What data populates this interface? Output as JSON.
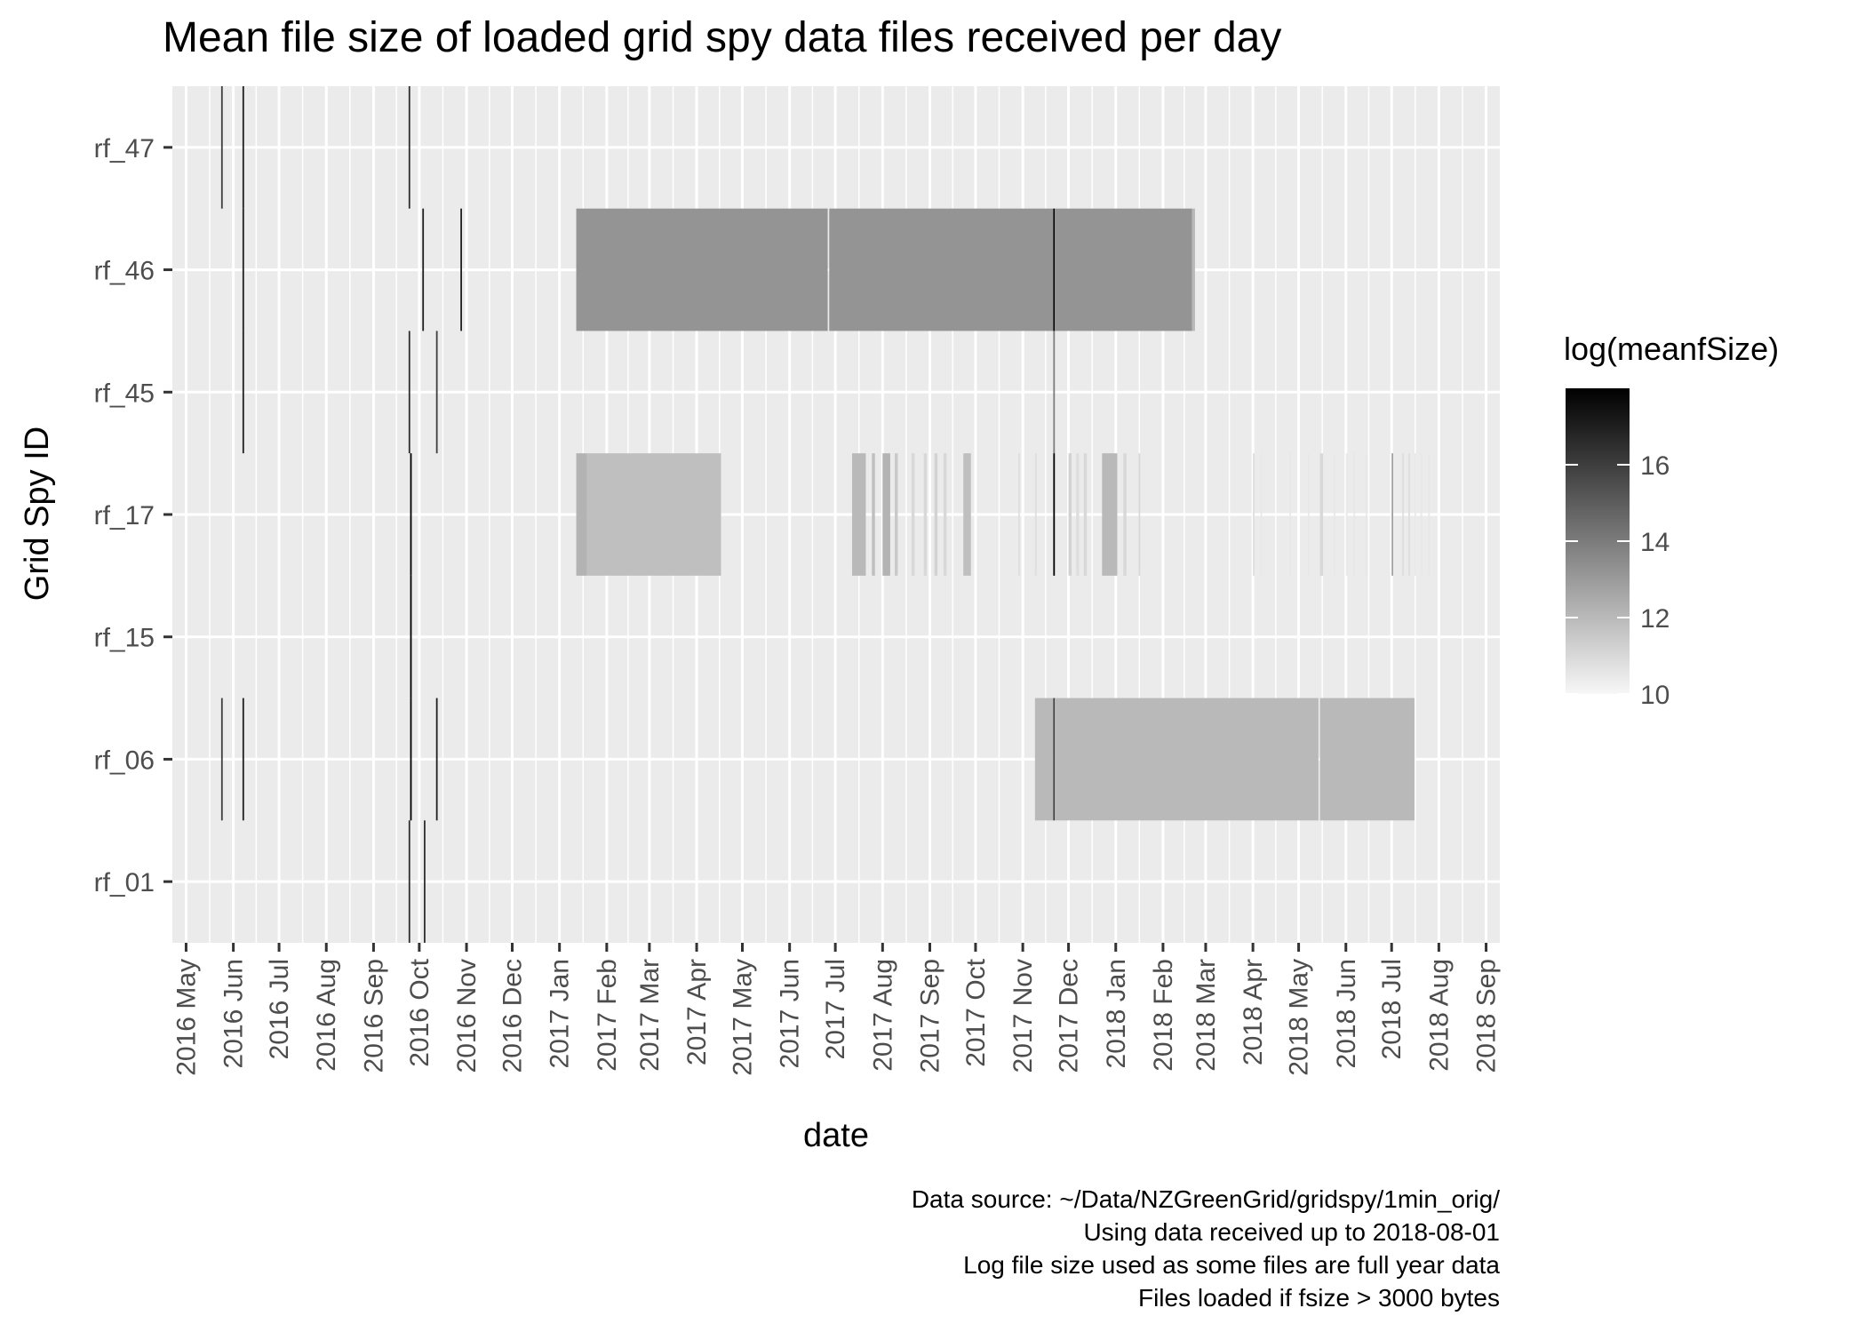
{
  "chart_data": {
    "type": "heatmap",
    "title": "Mean file size of loaded grid spy data files received per day",
    "xlabel": "date",
    "ylabel": "Grid Spy ID",
    "x_ticks": [
      "2016 May",
      "2016 Jun",
      "2016 Jul",
      "2016 Aug",
      "2016 Sep",
      "2016 Oct",
      "2016 Nov",
      "2016 Dec",
      "2017 Jan",
      "2017 Feb",
      "2017 Mar",
      "2017 Apr",
      "2017 May",
      "2017 Jun",
      "2017 Jul",
      "2017 Aug",
      "2017 Sep",
      "2017 Oct",
      "2017 Nov",
      "2017 Dec",
      "2018 Jan",
      "2018 Feb",
      "2018 Mar",
      "2018 Apr",
      "2018 May",
      "2018 Jun",
      "2018 Jul",
      "2018 Aug",
      "2018 Sep"
    ],
    "xlim": [
      "2016-04-22",
      "2018-09-10"
    ],
    "categories": [
      "rf_01",
      "rf_06",
      "rf_15",
      "rf_17",
      "rf_45",
      "rf_46",
      "rf_47"
    ],
    "legend": {
      "title": "log(meanfSize)",
      "ticks": [
        10,
        12,
        14,
        16
      ],
      "range": [
        10,
        18
      ],
      "low_color": "#f7f7f7",
      "high_color": "#000000"
    },
    "series": [
      {
        "name": "rf_47",
        "segments": [
          {
            "start": "2016-05-24",
            "end": "2016-05-24",
            "value": 16
          },
          {
            "start": "2016-06-07",
            "end": "2016-06-07",
            "value": 17
          },
          {
            "start": "2016-09-24",
            "end": "2016-09-24",
            "value": 16.5
          }
        ]
      },
      {
        "name": "rf_46",
        "segments": [
          {
            "start": "2016-06-07",
            "end": "2016-06-07",
            "value": 17
          },
          {
            "start": "2016-10-03",
            "end": "2016-10-03",
            "value": 17
          },
          {
            "start": "2016-10-28",
            "end": "2016-10-28",
            "value": 17
          },
          {
            "start": "2017-01-12",
            "end": "2017-06-25",
            "value": 13.2
          },
          {
            "start": "2017-06-27",
            "end": "2017-11-20",
            "value": 13.2
          },
          {
            "start": "2017-11-21",
            "end": "2017-11-21",
            "value": 18
          },
          {
            "start": "2017-11-22",
            "end": "2018-02-19",
            "value": 13.2
          },
          {
            "start": "2018-02-20",
            "end": "2018-02-21",
            "value": 12
          }
        ]
      },
      {
        "name": "rf_45",
        "segments": [
          {
            "start": "2016-06-07",
            "end": "2016-06-07",
            "value": 17
          },
          {
            "start": "2016-09-24",
            "end": "2016-09-24",
            "value": 16.5
          },
          {
            "start": "2016-10-12",
            "end": "2016-10-12",
            "value": 16
          },
          {
            "start": "2017-11-21",
            "end": "2017-11-21",
            "value": 14
          }
        ]
      },
      {
        "name": "rf_17",
        "segments": [
          {
            "start": "2016-09-25",
            "end": "2016-09-25",
            "value": 18
          },
          {
            "start": "2017-01-12",
            "end": "2017-01-18",
            "value": 12.2
          },
          {
            "start": "2017-01-19",
            "end": "2017-04-16",
            "value": 11.8
          },
          {
            "start": "2017-07-12",
            "end": "2017-07-20",
            "value": 12.0
          },
          {
            "start": "2017-07-25",
            "end": "2017-07-26",
            "value": 11.8
          },
          {
            "start": "2017-08-01",
            "end": "2017-08-05",
            "value": 12.2
          },
          {
            "start": "2017-08-09",
            "end": "2017-08-10",
            "value": 11.5
          },
          {
            "start": "2017-08-20",
            "end": "2017-08-21",
            "value": 11.0
          },
          {
            "start": "2017-08-28",
            "end": "2017-08-29",
            "value": 11.0
          },
          {
            "start": "2017-09-04",
            "end": "2017-09-05",
            "value": 11.2
          },
          {
            "start": "2017-09-10",
            "end": "2017-09-11",
            "value": 11.0
          },
          {
            "start": "2017-09-23",
            "end": "2017-09-27",
            "value": 11.8
          },
          {
            "start": "2017-10-29",
            "end": "2017-10-29",
            "value": 10.8
          },
          {
            "start": "2017-11-09",
            "end": "2017-11-09",
            "value": 10.8
          },
          {
            "start": "2017-11-21",
            "end": "2017-11-21",
            "value": 18
          },
          {
            "start": "2017-12-01",
            "end": "2017-12-02",
            "value": 11.2
          },
          {
            "start": "2017-12-06",
            "end": "2017-12-07",
            "value": 10.8
          },
          {
            "start": "2017-12-11",
            "end": "2017-12-12",
            "value": 11.0
          },
          {
            "start": "2017-12-23",
            "end": "2018-01-01",
            "value": 12.0
          },
          {
            "start": "2018-01-06",
            "end": "2018-01-07",
            "value": 11.0
          },
          {
            "start": "2018-01-16",
            "end": "2018-01-16",
            "value": 11.0
          },
          {
            "start": "2018-04-01",
            "end": "2018-04-01",
            "value": 10.8
          },
          {
            "start": "2018-04-06",
            "end": "2018-04-06",
            "value": 10.5
          },
          {
            "start": "2018-04-25",
            "end": "2018-04-25",
            "value": 10.5
          },
          {
            "start": "2018-05-07",
            "end": "2018-05-07",
            "value": 10.5
          },
          {
            "start": "2018-05-15",
            "end": "2018-05-16",
            "value": 11.0
          },
          {
            "start": "2018-05-24",
            "end": "2018-05-24",
            "value": 10.5
          },
          {
            "start": "2018-06-01",
            "end": "2018-06-01",
            "value": 10.5
          },
          {
            "start": "2018-06-06",
            "end": "2018-06-06",
            "value": 10.5
          },
          {
            "start": "2018-06-14",
            "end": "2018-06-14",
            "value": 10.5
          },
          {
            "start": "2018-07-01",
            "end": "2018-07-01",
            "value": 12.8
          },
          {
            "start": "2018-07-08",
            "end": "2018-07-08",
            "value": 10.8
          },
          {
            "start": "2018-07-12",
            "end": "2018-07-12",
            "value": 10.8
          },
          {
            "start": "2018-07-16",
            "end": "2018-07-16",
            "value": 10.5
          },
          {
            "start": "2018-07-20",
            "end": "2018-07-20",
            "value": 10.5
          },
          {
            "start": "2018-07-25",
            "end": "2018-07-25",
            "value": 10.5
          }
        ]
      },
      {
        "name": "rf_15",
        "segments": [
          {
            "start": "2016-09-25",
            "end": "2016-09-25",
            "value": 18
          }
        ]
      },
      {
        "name": "rf_06",
        "segments": [
          {
            "start": "2016-05-24",
            "end": "2016-05-24",
            "value": 16
          },
          {
            "start": "2016-06-07",
            "end": "2016-06-07",
            "value": 17
          },
          {
            "start": "2016-09-25",
            "end": "2016-09-25",
            "value": 18
          },
          {
            "start": "2016-10-12",
            "end": "2016-10-12",
            "value": 17
          },
          {
            "start": "2017-11-09",
            "end": "2017-11-20",
            "value": 12.0
          },
          {
            "start": "2017-11-21",
            "end": "2017-11-21",
            "value": 16
          },
          {
            "start": "2017-11-22",
            "end": "2018-05-13",
            "value": 12.0
          },
          {
            "start": "2018-05-15",
            "end": "2018-07-15",
            "value": 12.0
          }
        ]
      },
      {
        "name": "rf_01",
        "segments": [
          {
            "start": "2016-09-24",
            "end": "2016-09-24",
            "value": 16.5
          },
          {
            "start": "2016-10-04",
            "end": "2016-10-04",
            "value": 16.5
          }
        ]
      }
    ],
    "captions": [
      "Data source: ~/Data/NZGreenGrid/gridspy/1min_orig/",
      "Using data received up to 2018-08-01",
      "Log file size used as some files are full year data",
      "Files loaded if fsize > 3000 bytes"
    ]
  }
}
